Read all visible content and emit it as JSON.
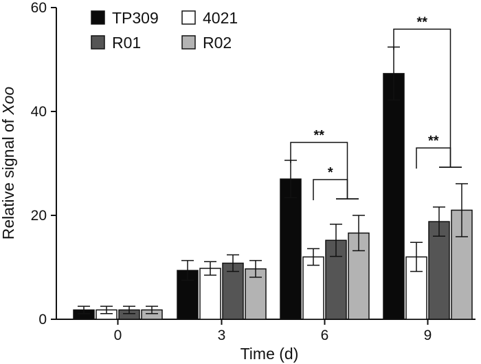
{
  "chart_data": {
    "type": "bar",
    "xlabel": "Time (d)",
    "ylabel_prefix": "Relative signal of ",
    "ylabel_italic": "Xoo",
    "ylim": [
      0,
      60
    ],
    "yticks": [
      "0",
      "20",
      "40",
      "60"
    ],
    "categories": [
      "0",
      "3",
      "6",
      "9"
    ],
    "series": [
      {
        "name": "TP309",
        "color": "#0a0a0a",
        "values": [
          1.8,
          9.4,
          27.0,
          47.3
        ],
        "errors": [
          0.7,
          1.9,
          3.6,
          5.1
        ]
      },
      {
        "name": "4021",
        "color": "#ffffff",
        "values": [
          1.8,
          9.8,
          12.0,
          12.0
        ],
        "errors": [
          0.7,
          1.3,
          1.6,
          2.8
        ]
      },
      {
        "name": "R01",
        "color": "#555555",
        "values": [
          1.8,
          10.8,
          15.2,
          18.8
        ],
        "errors": [
          0.7,
          1.6,
          3.1,
          2.8
        ]
      },
      {
        "name": "R02",
        "color": "#b3b3b3",
        "values": [
          1.8,
          9.7,
          16.6,
          21.0
        ],
        "errors": [
          0.7,
          1.6,
          3.4,
          5.1
        ]
      }
    ],
    "grid": false,
    "legend_position": "top-left",
    "annotations": [
      {
        "category": "6",
        "from": "TP309",
        "to": "R01,R02",
        "label": "**"
      },
      {
        "category": "6",
        "from": "4021",
        "to": "R01,R02",
        "label": "*"
      },
      {
        "category": "9",
        "from": "TP309",
        "to": "R01,R02",
        "label": "**"
      },
      {
        "category": "9",
        "from": "4021",
        "to": "R01,R02",
        "label": "**"
      }
    ]
  }
}
